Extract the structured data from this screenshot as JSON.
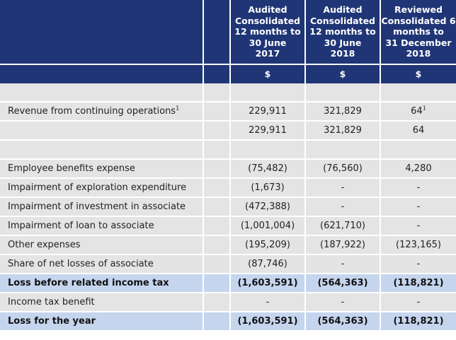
{
  "header": {
    "col1": "Audited Consolidated 12 months to 30 June 2017",
    "col1_lines": [
      "Audited",
      "Consolidated",
      "12 months to",
      "30 June",
      "2017"
    ],
    "col2_lines": [
      "Audited",
      "Consolidated",
      "12 months to",
      "30 June",
      "2018"
    ],
    "col3_lines": [
      "Reviewed",
      "Consolidated 6",
      "months to",
      "31 December",
      "2018"
    ],
    "currency": [
      "$",
      "$",
      "$"
    ]
  },
  "rows": [
    {
      "label": "",
      "v1": "",
      "v2": "",
      "v3": ""
    },
    {
      "label": "Revenue from continuing operations",
      "label_sup": "1",
      "v1": "229,911",
      "v2": "321,829",
      "v3": "64",
      "v3_sup": "1"
    },
    {
      "label": "",
      "v1": "229,911",
      "v2": "321,829",
      "v3": "64"
    },
    {
      "label": "",
      "v1": "",
      "v2": "",
      "v3": ""
    },
    {
      "label": "Employee benefits expense",
      "v1": "(75,482)",
      "v2": "(76,560)",
      "v3": "4,280"
    },
    {
      "label": "Impairment of exploration expenditure",
      "v1": "(1,673)",
      "v2": "-",
      "v3": "-"
    },
    {
      "label": "Impairment of investment in associate",
      "v1": "(472,388)",
      "v2": "-",
      "v3": "-"
    },
    {
      "label": "Impairment of loan to associate",
      "v1": "(1,001,004)",
      "v2": "(621,710)",
      "v3": "-"
    },
    {
      "label": "Other expenses",
      "v1": "(195,209)",
      "v2": "(187,922)",
      "v3": "(123,165)"
    },
    {
      "label": "Share of net losses of associate",
      "v1": "(87,746)",
      "v2": "-",
      "v3": "-"
    },
    {
      "label": "Loss before related income tax",
      "v1": "(1,603,591)",
      "v2": "(564,363)",
      "v3": "(118,821)"
    },
    {
      "label": "Income tax benefit",
      "v1": "-",
      "v2": "-",
      "v3": "-"
    },
    {
      "label": "Loss for the year",
      "v1": "(1,603,591)",
      "v2": "(564,363)",
      "v3": "(118,821)"
    }
  ],
  "colors": {
    "header_bg": "#1f3575",
    "row_bg": "#e4e4e4",
    "highlight_bg": "#c6d5ee"
  }
}
